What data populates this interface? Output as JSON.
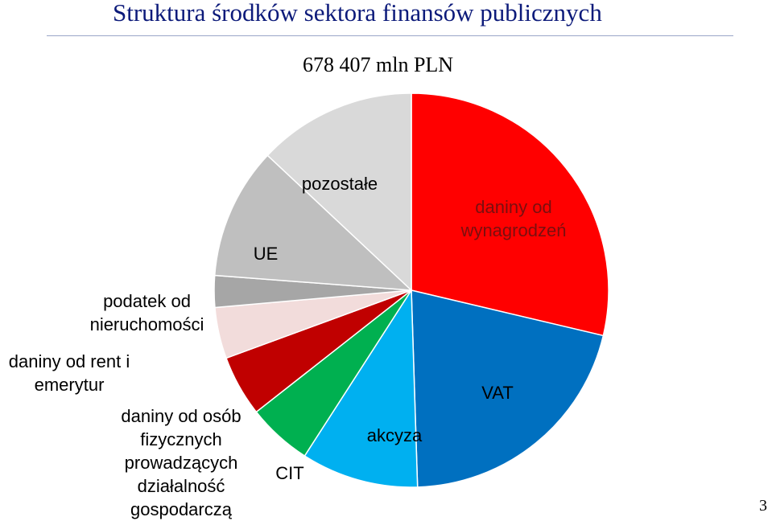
{
  "header": {
    "title": "Struktura środków sektora finansów publicznych",
    "total": "678 407 mln PLN",
    "page_number": "3"
  },
  "chart_data": {
    "type": "pie",
    "title": "Struktura środków sektora finansów publicznych",
    "subtitle": "678 407 mln PLN",
    "start_angle_deg": 0,
    "direction": "clockwise",
    "slices": [
      {
        "label": "daniny od\nwynagrodzeń",
        "value": 28.7,
        "color": "#ff0000"
      },
      {
        "label": "VAT",
        "value": 20.8,
        "color": "#0070c0"
      },
      {
        "label": "akcyza",
        "value": 9.6,
        "color": "#00b0f0"
      },
      {
        "label": "CIT",
        "value": 5.3,
        "color": "#00b050"
      },
      {
        "label": "daniny od osób\nfizycznych\nprowadzących\ndziałalność\ngospodarczą",
        "value": 5.0,
        "color": "#c00000"
      },
      {
        "label": "daniny od rent i\nemerytur",
        "value": 4.2,
        "color": "#f2dcdb"
      },
      {
        "label": "podatek od\nnieruchomości",
        "value": 2.6,
        "color": "#a6a6a6"
      },
      {
        "label": "UE",
        "value": 10.8,
        "color": "#bfbfbf"
      },
      {
        "label": "pozostałe",
        "value": 13.0,
        "color": "#d9d9d9"
      }
    ]
  }
}
